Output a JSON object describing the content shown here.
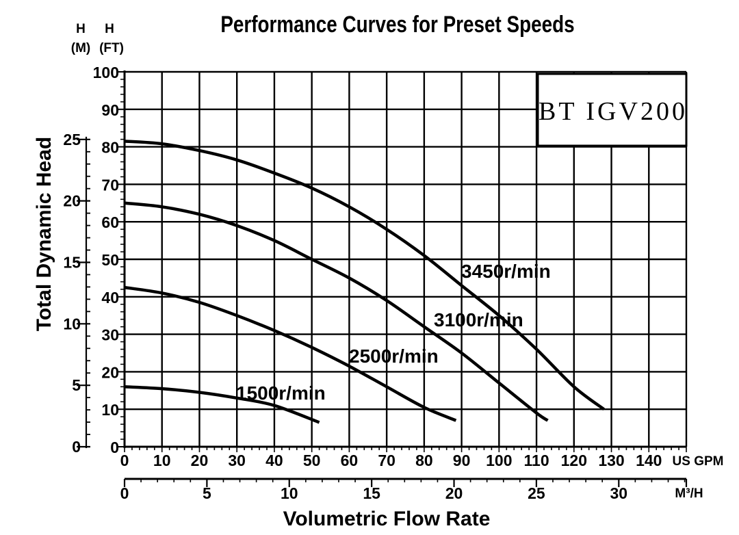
{
  "chart_data": {
    "type": "line",
    "title": "Performance Curves for Preset Speeds",
    "model_label": "BT IGV200",
    "xlabel": "Volumetric Flow Rate",
    "ylabel": "Total Dynamic Head",
    "x_gpm": {
      "unit": "US GPM",
      "range": [
        0,
        150
      ],
      "ticks": [
        "0",
        "10",
        "20",
        "30",
        "40",
        "50",
        "60",
        "70",
        "80",
        "90",
        "100",
        "110",
        "120",
        "130",
        "140"
      ]
    },
    "x_m3h": {
      "unit": "M³/H",
      "range": [
        0,
        34.1
      ],
      "ticks": [
        "0",
        "5",
        "10",
        "15",
        "20",
        "25",
        "30"
      ]
    },
    "y_ft": {
      "unit_top": "H",
      "unit_bottom": "(FT)",
      "range": [
        0,
        100
      ],
      "ticks": [
        "0",
        "10",
        "20",
        "30",
        "40",
        "50",
        "60",
        "70",
        "80",
        "90",
        "100"
      ]
    },
    "y_m": {
      "unit_top": "H",
      "unit_bottom": "(M)",
      "range": [
        0,
        30.5
      ],
      "ticks": [
        "0",
        "5",
        "10",
        "15",
        "20",
        "25"
      ]
    },
    "series": [
      {
        "name": "3450r/min",
        "x": [
          0,
          10,
          20,
          30,
          40,
          50,
          60,
          70,
          80,
          90,
          100,
          110,
          120,
          128
        ],
        "y": [
          81.5,
          80.8,
          79,
          76.5,
          73,
          69,
          64,
          58,
          51,
          43,
          35,
          26,
          16,
          10
        ]
      },
      {
        "name": "3100r/min",
        "x": [
          0,
          10,
          20,
          30,
          40,
          50,
          60,
          70,
          80,
          90,
          100,
          110,
          113
        ],
        "y": [
          65,
          64,
          62,
          59,
          55,
          50,
          45,
          39,
          32,
          25,
          17,
          9,
          7
        ]
      },
      {
        "name": "2500r/min",
        "x": [
          0,
          10,
          20,
          30,
          40,
          50,
          60,
          70,
          80,
          88.5
        ],
        "y": [
          42.5,
          41,
          38.5,
          35,
          31,
          26.5,
          21.5,
          16,
          10.5,
          7
        ]
      },
      {
        "name": "1500r/min",
        "x": [
          0,
          10,
          20,
          30,
          40,
          52
        ],
        "y": [
          16,
          15.5,
          14.5,
          13,
          11,
          6.5
        ]
      }
    ]
  }
}
